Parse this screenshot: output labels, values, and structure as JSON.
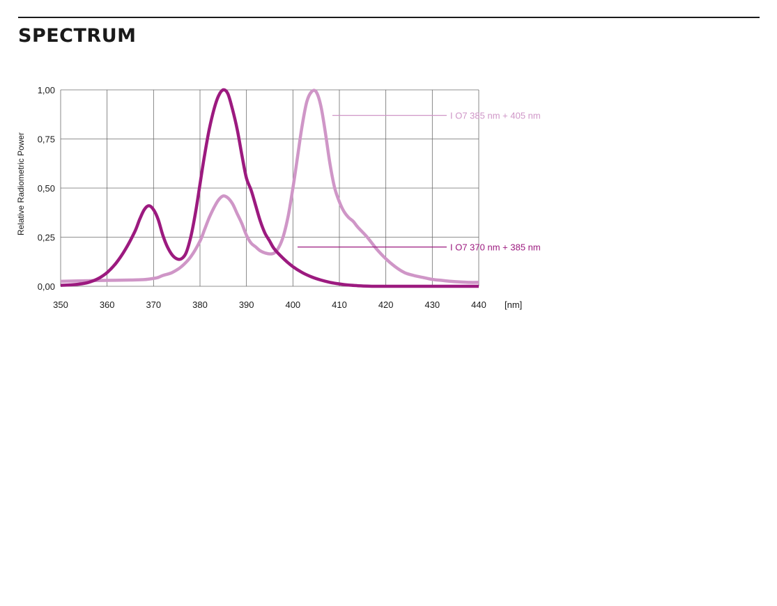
{
  "header": {
    "title": "SPECTRUM"
  },
  "chart_data": {
    "type": "line",
    "title": "",
    "xlabel": "",
    "x_unit_label": "[nm]",
    "ylabel": "Relative Radiometric Power",
    "xlim": [
      350,
      440
    ],
    "ylim": [
      0,
      1
    ],
    "x_ticks": [
      {
        "value": 350,
        "label": "350"
      },
      {
        "value": 360,
        "label": "360"
      },
      {
        "value": 370,
        "label": "370"
      },
      {
        "value": 380,
        "label": "380"
      },
      {
        "value": 390,
        "label": "390"
      },
      {
        "value": 400,
        "label": "400"
      },
      {
        "value": 410,
        "label": "410"
      },
      {
        "value": 420,
        "label": "420"
      },
      {
        "value": 430,
        "label": "430"
      },
      {
        "value": 440,
        "label": "440"
      }
    ],
    "y_ticks": [
      {
        "value": 0,
        "label": "0,00"
      },
      {
        "value": 0.25,
        "label": "0,25"
      },
      {
        "value": 0.5,
        "label": "0,50"
      },
      {
        "value": 0.75,
        "label": "0,75"
      },
      {
        "value": 1,
        "label": "1,00"
      }
    ],
    "grid": true,
    "series": [
      {
        "name": "I O7 370 nm + 385 nm",
        "color": "#9c1a7f",
        "x": [
          350,
          352,
          354,
          356,
          358,
          360,
          362,
          364,
          366,
          367,
          368,
          369,
          370,
          371,
          372,
          373,
          374,
          375,
          376,
          377,
          378,
          379,
          380,
          381,
          382,
          383,
          384,
          385,
          386,
          387,
          388,
          389,
          390,
          391,
          392,
          393,
          394,
          395,
          396,
          398,
          400,
          402,
          404,
          406,
          408,
          410,
          412,
          414,
          416,
          418,
          420,
          425,
          430,
          435,
          440
        ],
        "y": [
          0.005,
          0.007,
          0.011,
          0.02,
          0.038,
          0.07,
          0.12,
          0.19,
          0.28,
          0.34,
          0.39,
          0.41,
          0.39,
          0.34,
          0.26,
          0.2,
          0.16,
          0.14,
          0.14,
          0.17,
          0.25,
          0.37,
          0.52,
          0.67,
          0.8,
          0.9,
          0.97,
          1.0,
          0.98,
          0.9,
          0.8,
          0.67,
          0.55,
          0.49,
          0.41,
          0.33,
          0.27,
          0.23,
          0.19,
          0.14,
          0.1,
          0.07,
          0.048,
          0.032,
          0.02,
          0.012,
          0.006,
          0.003,
          0.001,
          0.0,
          0.0,
          0.0,
          0.0,
          0.0,
          0.0
        ]
      },
      {
        "name": "I O7 385 nm + 405 nm",
        "color": "#cf96c7",
        "x": [
          350,
          355,
          360,
          365,
          368,
          370,
          371,
          372,
          374,
          376,
          378,
          380,
          381,
          382,
          383,
          384,
          385,
          386,
          387,
          388,
          389,
          390,
          391,
          392,
          393,
          394,
          395,
          396,
          397,
          398,
          399,
          400,
          401,
          402,
          403,
          404,
          405,
          406,
          407,
          408,
          409,
          410,
          411,
          412,
          413,
          414,
          416,
          418,
          420,
          422,
          424,
          426,
          428,
          430,
          432,
          434,
          436,
          438,
          440
        ],
        "y": [
          0.025,
          0.028,
          0.03,
          0.032,
          0.034,
          0.04,
          0.045,
          0.055,
          0.07,
          0.1,
          0.15,
          0.23,
          0.29,
          0.35,
          0.4,
          0.44,
          0.46,
          0.45,
          0.42,
          0.37,
          0.32,
          0.26,
          0.22,
          0.2,
          0.18,
          0.17,
          0.165,
          0.17,
          0.2,
          0.26,
          0.36,
          0.5,
          0.66,
          0.82,
          0.94,
          0.99,
          0.99,
          0.92,
          0.78,
          0.62,
          0.5,
          0.43,
          0.38,
          0.35,
          0.33,
          0.3,
          0.25,
          0.19,
          0.14,
          0.1,
          0.07,
          0.055,
          0.045,
          0.035,
          0.03,
          0.025,
          0.022,
          0.02,
          0.02
        ]
      }
    ],
    "annotations": [
      {
        "text": "I O7 385 nm + 405 nm",
        "series": 1,
        "y": 0.87
      },
      {
        "text": "I O7 370 nm + 385 nm",
        "series": 0,
        "y": 0.2
      }
    ]
  }
}
